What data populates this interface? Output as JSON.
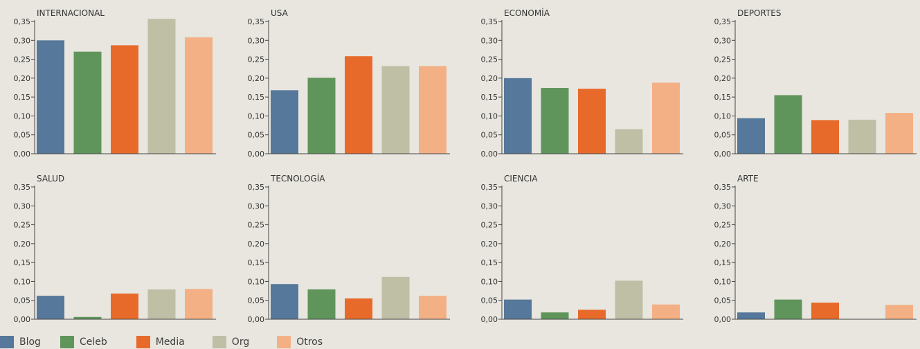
{
  "colors": {
    "Blog": "#56789a",
    "Celeb": "#5f955a",
    "Media": "#e86a2a",
    "Org": "#bebfa5",
    "Otros": "#f4b085",
    "axis": "#444444",
    "text": "#333333"
  },
  "legend": [
    {
      "label": "Blog",
      "color": "#56789a"
    },
    {
      "label": "Celeb",
      "color": "#5f955a"
    },
    {
      "label": "Media",
      "color": "#e86a2a"
    },
    {
      "label": "Org",
      "color": "#bebfa5"
    },
    {
      "label": "Otros",
      "color": "#f4b085"
    }
  ],
  "chart_data": [
    {
      "type": "bar",
      "title": "INTERNACIONAL",
      "categories": [
        "Blog",
        "Celeb",
        "Media",
        "Org",
        "Otros"
      ],
      "values": [
        0.3,
        0.27,
        0.287,
        0.357,
        0.308
      ],
      "ylim": [
        0,
        0.35
      ],
      "yticks": [
        "0,00",
        "0,05",
        "0,10",
        "0,15",
        "0,20",
        "0,25",
        "0,30",
        "0,35"
      ],
      "grid": false
    },
    {
      "type": "bar",
      "title": "USA",
      "categories": [
        "Blog",
        "Celeb",
        "Media",
        "Org",
        "Otros"
      ],
      "values": [
        0.168,
        0.201,
        0.258,
        0.232,
        0.232
      ],
      "ylim": [
        0,
        0.35
      ],
      "yticks": [
        "0,00",
        "0,05",
        "0,10",
        "0,15",
        "0,20",
        "0,25",
        "0,30",
        "0,35"
      ],
      "grid": false
    },
    {
      "type": "bar",
      "title": "ECONOMÍA",
      "categories": [
        "Blog",
        "Celeb",
        "Media",
        "Org",
        "Otros"
      ],
      "values": [
        0.2,
        0.174,
        0.172,
        0.065,
        0.188
      ],
      "ylim": [
        0,
        0.35
      ],
      "yticks": [
        "0,00",
        "0,05",
        "0,10",
        "0,15",
        "0,20",
        "0,25",
        "0,30",
        "0,35"
      ],
      "grid": false
    },
    {
      "type": "bar",
      "title": "DEPORTES",
      "categories": [
        "Blog",
        "Celeb",
        "Media",
        "Org",
        "Otros"
      ],
      "values": [
        0.094,
        0.155,
        0.089,
        0.09,
        0.108
      ],
      "ylim": [
        0,
        0.35
      ],
      "yticks": [
        "0,00",
        "0,05",
        "0,10",
        "0,15",
        "0,20",
        "0,25",
        "0,30",
        "0,35"
      ],
      "grid": false
    },
    {
      "type": "bar",
      "title": "SALUD",
      "categories": [
        "Blog",
        "Celeb",
        "Media",
        "Org",
        "Otros"
      ],
      "values": [
        0.062,
        0.006,
        0.068,
        0.079,
        0.08
      ],
      "ylim": [
        0,
        0.35
      ],
      "yticks": [
        "0,00",
        "0,05",
        "0,10",
        "0,15",
        "0,20",
        "0,25",
        "0,30",
        "0,35"
      ],
      "grid": false
    },
    {
      "type": "bar",
      "title": "TECNOLOGÍA",
      "categories": [
        "Blog",
        "Celeb",
        "Media",
        "Org",
        "Otros"
      ],
      "values": [
        0.093,
        0.079,
        0.055,
        0.112,
        0.062
      ],
      "ylim": [
        0,
        0.35
      ],
      "yticks": [
        "0,00",
        "0,05",
        "0,10",
        "0,15",
        "0,20",
        "0,25",
        "0,30",
        "0,35"
      ],
      "grid": false
    },
    {
      "type": "bar",
      "title": "CIENCIA",
      "categories": [
        "Blog",
        "Celeb",
        "Media",
        "Org",
        "Otros"
      ],
      "values": [
        0.052,
        0.018,
        0.025,
        0.102,
        0.039
      ],
      "ylim": [
        0,
        0.35
      ],
      "yticks": [
        "0,00",
        "0,05",
        "0,10",
        "0,15",
        "0,20",
        "0,25",
        "0,30",
        "0,35"
      ],
      "grid": false
    },
    {
      "type": "bar",
      "title": "ARTE",
      "categories": [
        "Blog",
        "Celeb",
        "Media",
        "Org",
        "Otros"
      ],
      "values": [
        0.018,
        0.052,
        0.044,
        0.0,
        0.038
      ],
      "ylim": [
        0,
        0.35
      ],
      "yticks": [
        "0,00",
        "0,05",
        "0,10",
        "0,15",
        "0,20",
        "0,25",
        "0,30",
        "0,35"
      ],
      "grid": false
    }
  ]
}
